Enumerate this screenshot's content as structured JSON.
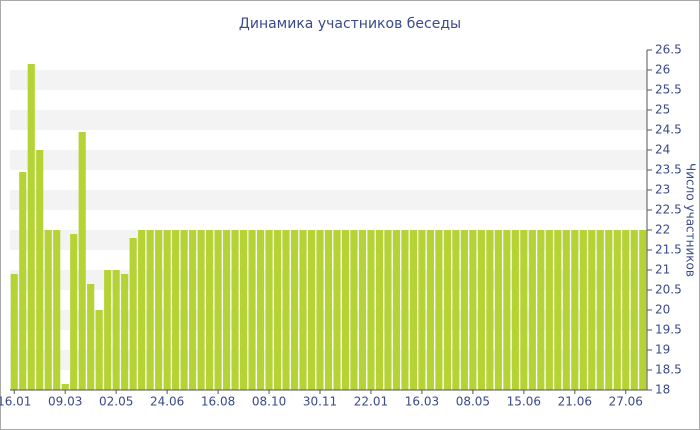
{
  "chart_data": {
    "type": "bar",
    "title": "Динамика участников беседы",
    "y_label": "Число участников",
    "categories": [
      "16.01",
      null,
      null,
      null,
      null,
      null,
      "09.03",
      null,
      null,
      null,
      null,
      null,
      "02.05",
      null,
      null,
      null,
      null,
      null,
      "24.06",
      null,
      null,
      null,
      null,
      null,
      "16.08",
      null,
      null,
      null,
      null,
      null,
      "08.10",
      null,
      null,
      null,
      null,
      null,
      "30.11",
      null,
      null,
      null,
      null,
      null,
      "22.01",
      null,
      null,
      null,
      null,
      null,
      "16.03",
      null,
      null,
      null,
      null,
      null,
      "08.05",
      null,
      null,
      null,
      null,
      null,
      "15.06",
      null,
      null,
      null,
      null,
      null,
      "21.06",
      null,
      null,
      null,
      null,
      null,
      "27.06",
      null,
      null
    ],
    "values": [
      20.9,
      23.45,
      26.15,
      24,
      22,
      22,
      18.15,
      21.9,
      24.45,
      20.65,
      20,
      21,
      21,
      20.9,
      21.8,
      22,
      22,
      22,
      22,
      22,
      22,
      22,
      22,
      22,
      22,
      22,
      22,
      22,
      22,
      22,
      22,
      22,
      22,
      22,
      22,
      22,
      22,
      22,
      22,
      22,
      22,
      22,
      22,
      22,
      22,
      22,
      22,
      22,
      22,
      22,
      22,
      22,
      22,
      22,
      22,
      22,
      22,
      22,
      22,
      22,
      22,
      22,
      22,
      22,
      22,
      22,
      22,
      22,
      22,
      22,
      22,
      22,
      22,
      22,
      22
    ],
    "color": "#b5d334",
    "ylim": [
      18,
      26.5
    ],
    "yticks": [
      18,
      18.5,
      19,
      19.5,
      20,
      20.5,
      21,
      21.5,
      22,
      22.5,
      23,
      23.5,
      24,
      24.5,
      25,
      25.5,
      26,
      26.5
    ],
    "grid": true
  }
}
